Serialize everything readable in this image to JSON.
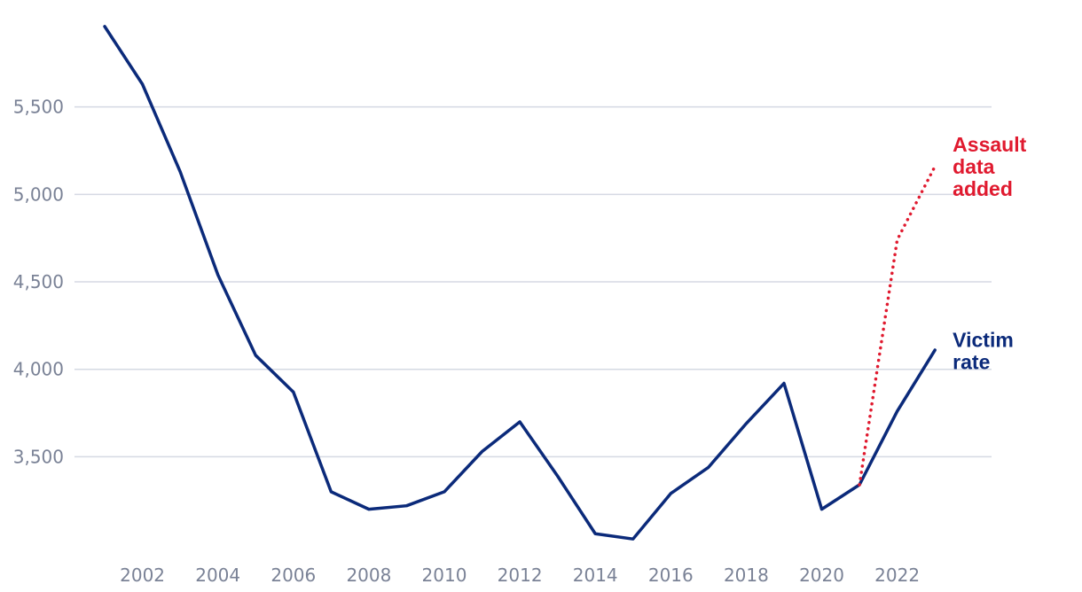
{
  "chart_data": {
    "type": "line",
    "x": [
      2001,
      2002,
      2003,
      2004,
      2005,
      2006,
      2007,
      2008,
      2009,
      2010,
      2011,
      2012,
      2013,
      2014,
      2015,
      2016,
      2017,
      2018,
      2019,
      2020,
      2021,
      2022,
      2023
    ],
    "series": [
      {
        "name": "Victim rate",
        "color": "#0b2a7a",
        "style": "solid",
        "x": [
          2001,
          2002,
          2003,
          2004,
          2005,
          2006,
          2007,
          2008,
          2009,
          2010,
          2011,
          2012,
          2013,
          2014,
          2015,
          2016,
          2017,
          2018,
          2019,
          2020,
          2021,
          2022,
          2023
        ],
        "values": [
          5960,
          5630,
          5130,
          4540,
          4080,
          3870,
          3300,
          3200,
          3220,
          3300,
          3530,
          3700,
          3390,
          3060,
          3030,
          3290,
          3440,
          3690,
          3920,
          3200,
          3340,
          3760,
          4110
        ]
      },
      {
        "name": "Assault data added",
        "color": "#e01a2f",
        "style": "dotted",
        "x": [
          2021,
          2022,
          2023
        ],
        "values": [
          3340,
          4740,
          5160
        ]
      }
    ],
    "x_ticks": [
      2002,
      2004,
      2006,
      2008,
      2010,
      2012,
      2014,
      2016,
      2018,
      2020,
      2022
    ],
    "x_tick_labels": [
      "2002",
      "2004",
      "2006",
      "2008",
      "2010",
      "2012",
      "2014",
      "2016",
      "2018",
      "2020",
      "2022"
    ],
    "y_ticks": [
      3500,
      4000,
      4500,
      5000,
      5500
    ],
    "y_tick_labels": [
      "3,500",
      "4,000",
      "4,500",
      "5,000",
      "5,500"
    ],
    "xlim": [
      2000.2,
      2024.5
    ],
    "ylim": [
      2960,
      6010
    ],
    "grid": "horizontal",
    "title": "",
    "xlabel": "",
    "ylabel": "",
    "annotations": [
      {
        "lines": [
          "Assault",
          "data",
          "added"
        ],
        "color": "#e01a2f",
        "anchor_series": "Assault data added"
      },
      {
        "lines": [
          "Victim",
          "rate"
        ],
        "color": "#0b2a7a",
        "anchor_series": "Victim rate"
      }
    ],
    "grid_color": "#d5d9e3",
    "tick_color": "#7a8296"
  }
}
